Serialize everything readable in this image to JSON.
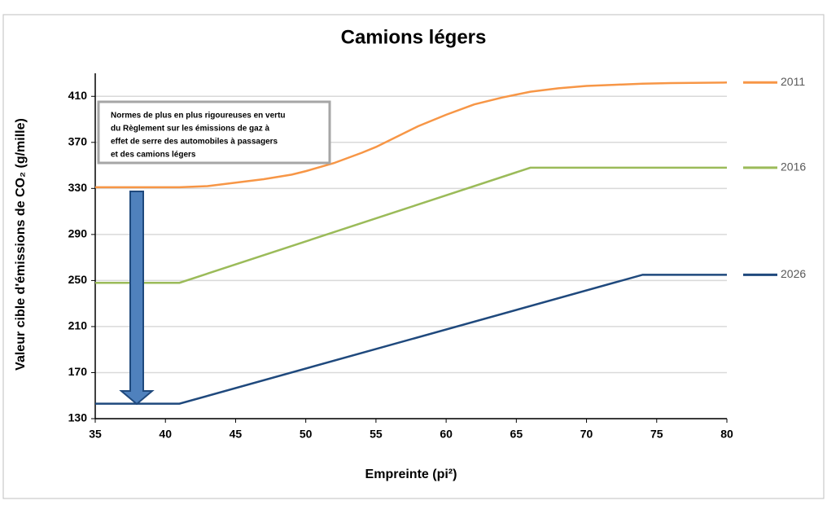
{
  "chart_data": {
    "type": "line",
    "title": "Camions légers",
    "y_label": "Valeur cible d'émissions de CO₂ (g/mille)",
    "x_label": "Empreinte (pi²)",
    "annotation": [
      "Normes de plus en plus rigoureuses en vertu",
      "du Règlement sur les émissions de gaz à",
      "effet de serre des automobiles à passagers",
      "et des camions légers"
    ],
    "xlim": [
      35,
      80
    ],
    "xticks": [
      35,
      40,
      45,
      50,
      55,
      60,
      65,
      70,
      75,
      80
    ],
    "ylim": [
      130,
      430
    ],
    "yticks": [
      130,
      170,
      210,
      250,
      290,
      330,
      370,
      410
    ],
    "grid": true,
    "legend": "right",
    "series": [
      {
        "name": "2011",
        "color": "#f79646",
        "x": [
          35,
          41,
          43,
          45,
          47,
          49,
          50,
          52,
          54,
          55,
          56,
          58,
          60,
          62,
          64,
          66,
          68,
          70,
          72,
          74,
          76,
          80
        ],
        "values": [
          331,
          331,
          332,
          335,
          338,
          342,
          345,
          352,
          361,
          366,
          372,
          384,
          394,
          403,
          409,
          414,
          417,
          419,
          420,
          421,
          421.5,
          422
        ]
      },
      {
        "name": "2016",
        "color": "#9bbb59",
        "x": [
          35,
          41,
          66,
          80
        ],
        "values": [
          248,
          248,
          348,
          348
        ]
      },
      {
        "name": "2026",
        "color": "#1f497d",
        "x": [
          35,
          41,
          74,
          80
        ],
        "values": [
          143,
          143,
          255,
          255
        ]
      }
    ]
  }
}
